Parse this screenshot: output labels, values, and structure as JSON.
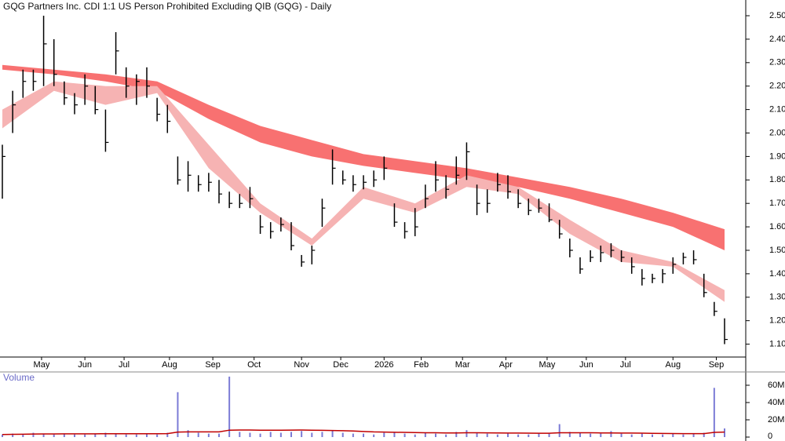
{
  "chart_data": [
    {
      "type": "ohlc",
      "title": "GQG Partners Inc. CDI 1:1 US Person Prohibited Excluding QIB (GQG) - Daily",
      "color": "#000000",
      "x": [
        0,
        5,
        10,
        15,
        20,
        25,
        30,
        35,
        40,
        45,
        50,
        55,
        60,
        65,
        70,
        75,
        80,
        85,
        90,
        95,
        100,
        105,
        110,
        115,
        120,
        125,
        130,
        135,
        140,
        145,
        150,
        155,
        160,
        165,
        170,
        175,
        180,
        185,
        190,
        195,
        200,
        205,
        210,
        215,
        220,
        225,
        230,
        235,
        240,
        245,
        250,
        255,
        260,
        265,
        270,
        275,
        280,
        285,
        290,
        295,
        300,
        305,
        310,
        315,
        320,
        325,
        330,
        335,
        340,
        345,
        350
      ],
      "high": [
        1.95,
        2.18,
        2.27,
        2.27,
        2.5,
        2.4,
        2.22,
        2.17,
        2.25,
        2.2,
        2.1,
        2.43,
        2.28,
        2.25,
        2.28,
        2.15,
        2.12,
        1.9,
        1.88,
        1.82,
        1.83,
        1.8,
        1.75,
        1.74,
        1.77,
        1.65,
        1.62,
        1.64,
        1.62,
        1.48,
        1.52,
        1.72,
        1.93,
        1.84,
        1.82,
        1.82,
        1.84,
        1.9,
        1.7,
        1.62,
        1.68,
        1.78,
        1.88,
        1.82,
        1.9,
        1.96,
        1.78,
        1.76,
        1.83,
        1.82,
        1.76,
        1.72,
        1.72,
        1.7,
        1.63,
        1.55,
        1.47,
        1.5,
        1.52,
        1.53,
        1.5,
        1.47,
        1.42,
        1.4,
        1.42,
        1.47,
        1.49,
        1.5,
        1.4,
        1.28,
        1.21
      ],
      "low": [
        1.72,
        2.0,
        2.15,
        2.18,
        2.2,
        2.2,
        2.12,
        2.08,
        2.12,
        2.08,
        1.92,
        2.25,
        2.15,
        2.12,
        2.15,
        2.05,
        2.0,
        1.78,
        1.75,
        1.75,
        1.75,
        1.7,
        1.68,
        1.68,
        1.68,
        1.57,
        1.55,
        1.58,
        1.5,
        1.43,
        1.44,
        1.6,
        1.78,
        1.78,
        1.75,
        1.76,
        1.77,
        1.8,
        1.6,
        1.55,
        1.56,
        1.68,
        1.75,
        1.72,
        1.78,
        1.8,
        1.65,
        1.66,
        1.75,
        1.72,
        1.68,
        1.65,
        1.66,
        1.62,
        1.55,
        1.47,
        1.4,
        1.45,
        1.45,
        1.47,
        1.45,
        1.4,
        1.35,
        1.36,
        1.36,
        1.4,
        1.44,
        1.44,
        1.3,
        1.22,
        1.1
      ],
      "close": [
        1.9,
        2.12,
        2.22,
        2.22,
        2.38,
        2.25,
        2.15,
        2.12,
        2.2,
        2.1,
        1.96,
        2.35,
        2.2,
        2.22,
        2.2,
        2.08,
        2.05,
        1.8,
        1.82,
        1.78,
        1.79,
        1.74,
        1.7,
        1.7,
        1.72,
        1.6,
        1.58,
        1.61,
        1.52,
        1.45,
        1.5,
        1.68,
        1.85,
        1.8,
        1.78,
        1.79,
        1.8,
        1.85,
        1.62,
        1.58,
        1.6,
        1.72,
        1.8,
        1.76,
        1.82,
        1.92,
        1.7,
        1.7,
        1.78,
        1.75,
        1.7,
        1.67,
        1.68,
        1.63,
        1.57,
        1.5,
        1.42,
        1.47,
        1.49,
        1.5,
        1.47,
        1.43,
        1.38,
        1.38,
        1.4,
        1.44,
        1.47,
        1.46,
        1.32,
        1.24,
        1.12
      ],
      "bands": [
        {
          "color": "#f87171",
          "x": [
            0,
            25,
            50,
            75,
            100,
            125,
            150,
            175,
            200,
            225,
            250,
            275,
            300,
            325,
            350
          ],
          "upper": [
            2.29,
            2.27,
            2.25,
            2.22,
            2.12,
            2.03,
            1.97,
            1.91,
            1.88,
            1.85,
            1.81,
            1.77,
            1.72,
            1.66,
            1.59
          ],
          "lower": [
            2.27,
            2.25,
            2.22,
            2.18,
            2.06,
            1.96,
            1.9,
            1.86,
            1.83,
            1.8,
            1.77,
            1.72,
            1.66,
            1.6,
            1.5
          ]
        },
        {
          "color": "#f6b3b3",
          "x": [
            0,
            25,
            50,
            75,
            100,
            125,
            150,
            175,
            200,
            225,
            250,
            275,
            300,
            325,
            350
          ],
          "upper": [
            2.1,
            2.22,
            2.2,
            2.2,
            1.95,
            1.7,
            1.55,
            1.77,
            1.7,
            1.82,
            1.77,
            1.63,
            1.5,
            1.45,
            1.33
          ],
          "lower": [
            2.02,
            2.18,
            2.12,
            2.17,
            1.85,
            1.66,
            1.52,
            1.72,
            1.66,
            1.77,
            1.74,
            1.57,
            1.45,
            1.43,
            1.28
          ]
        }
      ],
      "xlim": [
        -1,
        356
      ],
      "xticks": [
        {
          "value": 19,
          "label": "May"
        },
        {
          "value": 40,
          "label": "Jun"
        },
        {
          "value": 59,
          "label": "Jul"
        },
        {
          "value": 81,
          "label": "Aug"
        },
        {
          "value": 102,
          "label": "Sep"
        },
        {
          "value": 122,
          "label": "Oct"
        },
        {
          "value": 145,
          "label": "Nov"
        },
        {
          "value": 164,
          "label": "Dec"
        },
        {
          "value": 185,
          "label": "2026"
        },
        {
          "value": 203,
          "label": "Feb"
        },
        {
          "value": 223,
          "label": "Mar"
        },
        {
          "value": 244,
          "label": "Apr"
        },
        {
          "value": 264,
          "label": "May"
        },
        {
          "value": 283,
          "label": "Jun"
        },
        {
          "value": 302,
          "label": "Jul"
        },
        {
          "value": 325,
          "label": "Aug"
        },
        {
          "value": 346,
          "label": "Sep"
        }
      ],
      "ylim": [
        1.045,
        2.567
      ],
      "yticks": [
        {
          "value": 1.1,
          "label": "1.10"
        },
        {
          "value": 1.2,
          "label": "1.20"
        },
        {
          "value": 1.3,
          "label": "1.30"
        },
        {
          "value": 1.4,
          "label": "1.40"
        },
        {
          "value": 1.5,
          "label": "1.50"
        },
        {
          "value": 1.6,
          "label": "1.60"
        },
        {
          "value": 1.7,
          "label": "1.70"
        },
        {
          "value": 1.8,
          "label": "1.80"
        },
        {
          "value": 1.9,
          "label": "1.90"
        },
        {
          "value": 2.0,
          "label": "2.00"
        },
        {
          "value": 2.1,
          "label": "2.10"
        },
        {
          "value": 2.2,
          "label": "2.20"
        },
        {
          "value": 2.3,
          "label": "2.30"
        },
        {
          "value": 2.4,
          "label": "2.40"
        },
        {
          "value": 2.5,
          "label": "2.50"
        }
      ]
    },
    {
      "type": "volume",
      "title": "Volume",
      "color": "#7b7bd6",
      "x": [
        0,
        5,
        10,
        15,
        20,
        25,
        30,
        35,
        40,
        45,
        50,
        55,
        60,
        65,
        70,
        75,
        80,
        85,
        90,
        95,
        100,
        105,
        110,
        115,
        120,
        125,
        130,
        135,
        140,
        145,
        150,
        155,
        160,
        165,
        170,
        175,
        180,
        185,
        190,
        195,
        200,
        205,
        210,
        215,
        220,
        225,
        230,
        235,
        240,
        245,
        250,
        255,
        260,
        265,
        270,
        275,
        280,
        285,
        290,
        295,
        300,
        305,
        310,
        315,
        320,
        325,
        330,
        335,
        340,
        345,
        350
      ],
      "values": [
        3000000,
        4000000,
        3000000,
        5000000,
        4000000,
        3000000,
        4000000,
        3000000,
        3000000,
        4000000,
        5000000,
        4000000,
        3000000,
        3000000,
        4000000,
        3000000,
        5000000,
        52000000,
        8000000,
        5000000,
        4000000,
        4000000,
        70000000,
        6000000,
        5000000,
        4000000,
        6000000,
        5000000,
        6000000,
        7000000,
        5000000,
        6000000,
        8000000,
        5000000,
        4000000,
        4000000,
        3000000,
        5000000,
        6000000,
        4000000,
        3000000,
        5000000,
        4000000,
        3000000,
        6000000,
        8000000,
        5000000,
        4000000,
        3000000,
        4000000,
        3000000,
        3000000,
        4000000,
        4000000,
        15000000,
        6000000,
        5000000,
        4000000,
        4000000,
        7000000,
        4000000,
        3000000,
        4000000,
        3000000,
        3000000,
        4000000,
        3000000,
        4000000,
        5000000,
        57000000,
        10000000
      ],
      "ma": {
        "color": "#c00000",
        "values": [
          3000000,
          3200000,
          3300000,
          3500000,
          3600000,
          3600000,
          3700000,
          3700000,
          3700000,
          3800000,
          3900000,
          3900000,
          3900000,
          3900000,
          3900000,
          3900000,
          4000000,
          5800000,
          6000000,
          6000000,
          6000000,
          6000000,
          8000000,
          8200000,
          8200000,
          8000000,
          8000000,
          8000000,
          8100000,
          8200000,
          8000000,
          7800000,
          7600000,
          7400000,
          7000000,
          6500000,
          6000000,
          5800000,
          5600000,
          5400000,
          5200000,
          5000000,
          5000000,
          4800000,
          4800000,
          5000000,
          5000000,
          4900000,
          4800000,
          4700000,
          4600000,
          4500000,
          4400000,
          4400000,
          5000000,
          5000000,
          5000000,
          5000000,
          4800000,
          4800000,
          4700000,
          4600000,
          4500000,
          4300000,
          4200000,
          4100000,
          4000000,
          4000000,
          4000000,
          5500000,
          5800000
        ]
      },
      "xlim": [
        -1,
        356
      ],
      "ylim": [
        0,
        74500000
      ],
      "yticks": [
        0,
        {
          "value": 20000000,
          "label": "20M"
        },
        {
          "value": 40000000,
          "label": "40M"
        },
        {
          "value": 60000000,
          "label": "60M"
        }
      ]
    }
  ]
}
